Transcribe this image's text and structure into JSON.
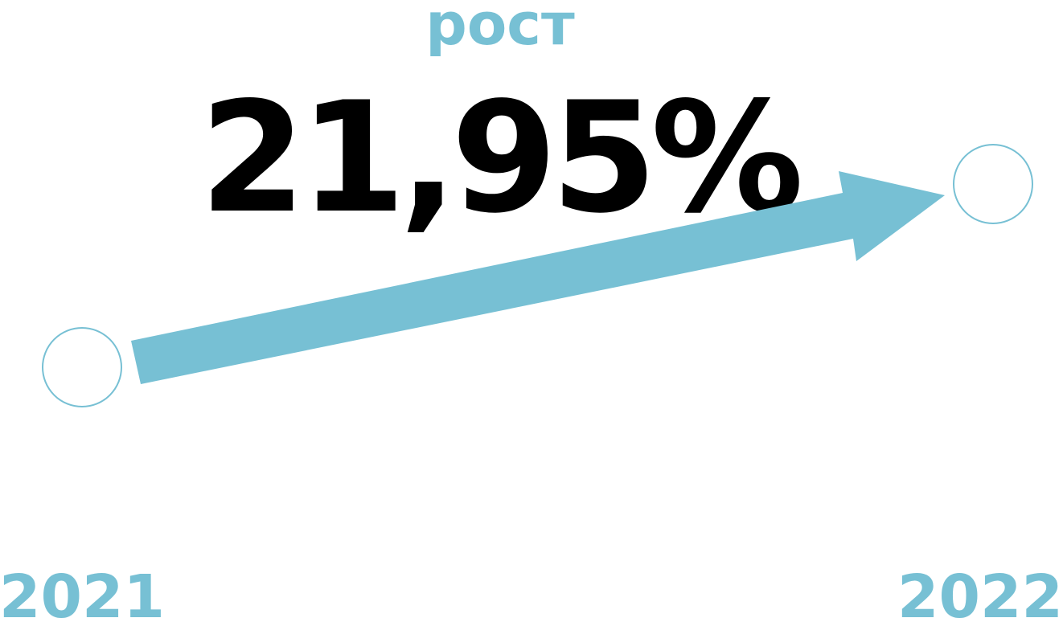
{
  "label": "рост",
  "value_text": "21,95%",
  "start_year": "2021",
  "end_year": "2022"
}
